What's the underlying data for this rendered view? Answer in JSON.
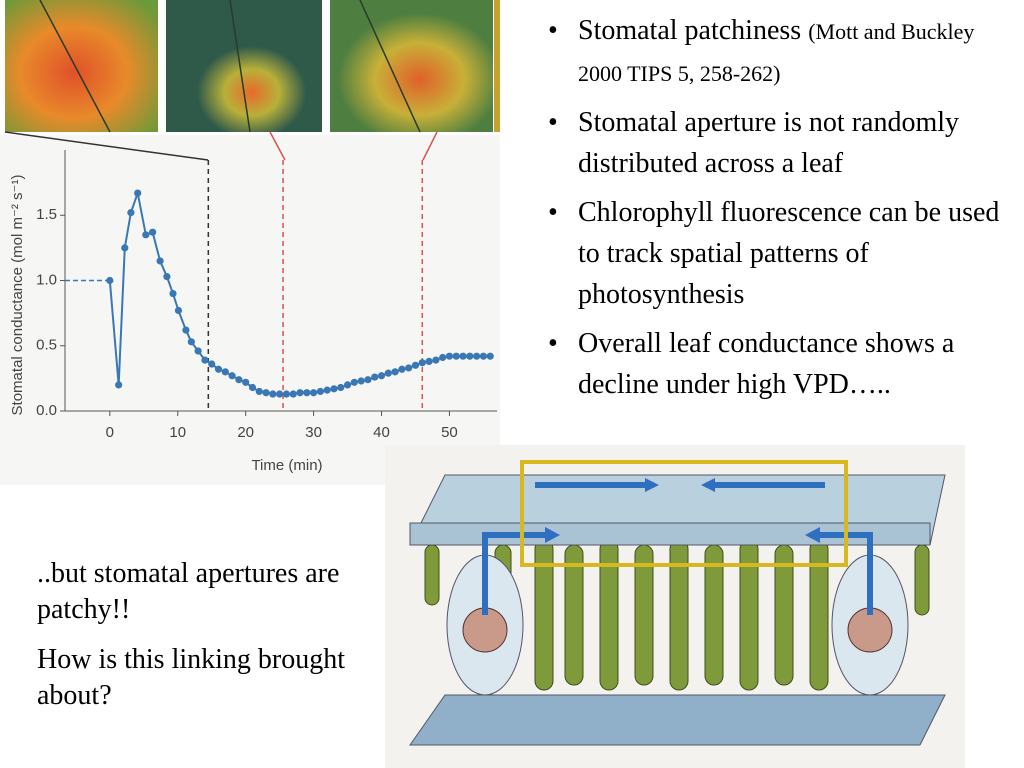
{
  "chart_data": {
    "type": "line",
    "x_label": "Time (min)",
    "y_label": "Stomatal conductance (mol m⁻² s⁻¹)",
    "x": [
      0,
      1.3,
      2.2,
      3.1,
      4.1,
      5.3,
      6.3,
      7.4,
      8.4,
      9.3,
      10.1,
      11.2,
      12,
      13,
      14,
      15,
      16,
      17,
      18,
      19,
      20,
      21,
      22,
      23,
      24,
      25,
      26,
      27,
      28,
      29,
      30,
      31,
      32,
      33,
      34,
      35,
      36,
      37,
      38,
      39,
      40,
      41,
      42,
      43,
      44,
      45,
      46,
      47,
      48,
      49,
      50,
      51,
      52,
      53,
      54,
      55,
      56
    ],
    "series": [
      {
        "color": "#3a78b5",
        "values": [
          1.0,
          0.2,
          1.25,
          1.52,
          1.67,
          1.35,
          1.37,
          1.15,
          1.03,
          0.9,
          0.77,
          0.62,
          0.53,
          0.46,
          0.39,
          0.36,
          0.32,
          0.3,
          0.27,
          0.24,
          0.22,
          0.18,
          0.15,
          0.14,
          0.13,
          0.13,
          0.13,
          0.13,
          0.14,
          0.14,
          0.14,
          0.15,
          0.16,
          0.17,
          0.18,
          0.2,
          0.22,
          0.23,
          0.24,
          0.26,
          0.27,
          0.29,
          0.3,
          0.32,
          0.33,
          0.35,
          0.37,
          0.38,
          0.39,
          0.41,
          0.42,
          0.42,
          0.42,
          0.42,
          0.42,
          0.42,
          0.42
        ]
      }
    ],
    "xlim": [
      -6.6,
      57
    ],
    "ylim": [
      0,
      2
    ],
    "xticks": [
      0,
      10,
      20,
      30,
      40,
      50
    ],
    "yticks": [
      {
        "value": 0,
        "label": "0.0"
      },
      0.5,
      {
        "value": 1,
        "label": "1.0"
      },
      1.5
    ],
    "vlines": [
      {
        "value": 14.5,
        "color": "#333333"
      },
      {
        "value": 25.5,
        "color": "#d9534f"
      },
      {
        "value": 46,
        "color": "#d9534f"
      }
    ]
  },
  "bullets": [
    {
      "text": "Stomatal patchiness ",
      "note": "(Mott and Buckley 2000 TIPS 5, 258-262)"
    },
    {
      "text": "Stomatal aperture is not randomly distributed across a leaf"
    },
    {
      "text": "Chlorophyll fluorescence can be used to track spatial patterns of photosynthesis"
    },
    {
      "text": "Overall leaf conductance shows a decline under high VPD….."
    }
  ],
  "left_text": [
    "..but stomatal apertures are patchy!!",
    "How is this linking brought about?"
  ]
}
